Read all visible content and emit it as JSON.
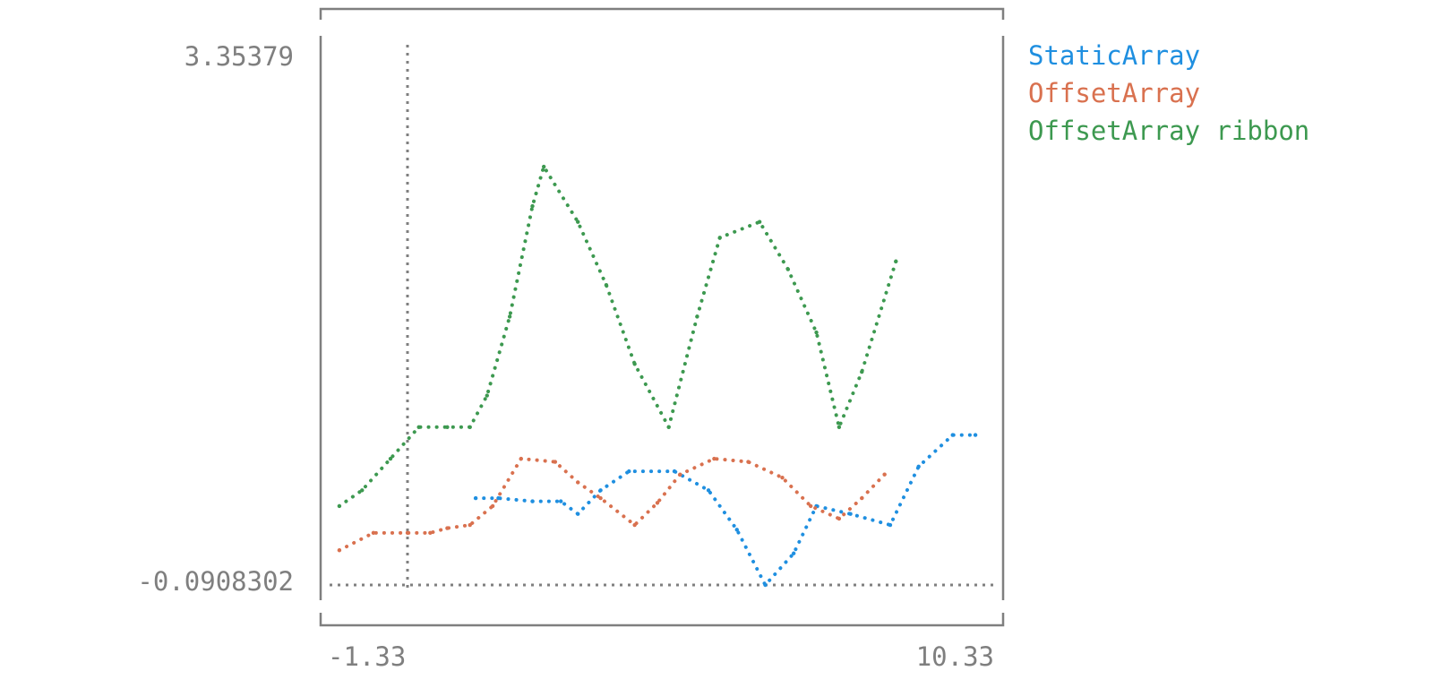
{
  "chart_data": {
    "type": "line",
    "title": "",
    "xlabel": "",
    "ylabel": "",
    "xlim": [
      -1.33,
      10.33
    ],
    "ylim": [
      -0.0908302,
      3.35379
    ],
    "x_tick_labels": [
      "-1.33",
      "10.33"
    ],
    "y_tick_labels": [
      "3.35379",
      "-0.0908302"
    ],
    "grid": false,
    "zero_axes": true,
    "legend": "right",
    "series": [
      {
        "name": "StaticArray",
        "color": "#1f8fe0",
        "points": [
          [
            1.2,
            0.55
          ],
          [
            1.6,
            0.55
          ],
          [
            2.2,
            0.53
          ],
          [
            2.7,
            0.53
          ],
          [
            3.0,
            0.45
          ],
          [
            3.4,
            0.6
          ],
          [
            3.9,
            0.72
          ],
          [
            4.7,
            0.72
          ],
          [
            5.3,
            0.6
          ],
          [
            5.8,
            0.35
          ],
          [
            6.3,
            0.0
          ],
          [
            6.8,
            0.2
          ],
          [
            7.2,
            0.5
          ],
          [
            7.8,
            0.45
          ],
          [
            8.5,
            0.38
          ],
          [
            9.0,
            0.75
          ],
          [
            9.6,
            0.95
          ],
          [
            10.0,
            0.95
          ]
        ]
      },
      {
        "name": "OffsetArray",
        "color": "#d9714f",
        "points": [
          [
            -1.2,
            0.22
          ],
          [
            -0.6,
            0.33
          ],
          [
            0.0,
            0.33
          ],
          [
            0.4,
            0.33
          ],
          [
            0.7,
            0.36
          ],
          [
            1.1,
            0.38
          ],
          [
            1.5,
            0.5
          ],
          [
            2.0,
            0.8
          ],
          [
            2.6,
            0.78
          ],
          [
            3.0,
            0.65
          ],
          [
            3.4,
            0.55
          ],
          [
            4.0,
            0.38
          ],
          [
            4.4,
            0.52
          ],
          [
            4.8,
            0.7
          ],
          [
            5.4,
            0.8
          ],
          [
            6.0,
            0.78
          ],
          [
            6.6,
            0.68
          ],
          [
            7.1,
            0.5
          ],
          [
            7.6,
            0.42
          ],
          [
            8.0,
            0.55
          ],
          [
            8.4,
            0.7
          ]
        ]
      },
      {
        "name": "OffsetArray ribbon",
        "color": "#3d9950",
        "points": [
          [
            -1.2,
            0.5
          ],
          [
            -0.8,
            0.6
          ],
          [
            -0.3,
            0.8
          ],
          [
            0.2,
            1.0
          ],
          [
            0.7,
            1.0
          ],
          [
            1.1,
            1.0
          ],
          [
            1.4,
            1.2
          ],
          [
            1.8,
            1.7
          ],
          [
            2.2,
            2.4
          ],
          [
            2.4,
            2.65
          ],
          [
            3.0,
            2.3
          ],
          [
            3.5,
            1.9
          ],
          [
            4.0,
            1.4
          ],
          [
            4.6,
            1.0
          ],
          [
            5.1,
            1.7
          ],
          [
            5.5,
            2.2
          ],
          [
            6.2,
            2.3
          ],
          [
            6.7,
            2.0
          ],
          [
            7.2,
            1.6
          ],
          [
            7.6,
            1.0
          ],
          [
            8.0,
            1.35
          ],
          [
            8.6,
            2.05
          ]
        ]
      }
    ]
  }
}
